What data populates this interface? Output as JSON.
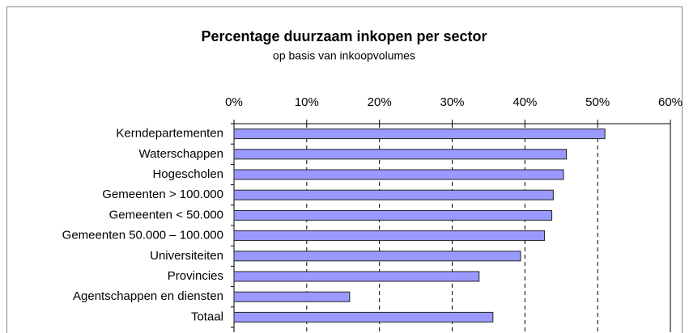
{
  "chart_data": {
    "type": "bar",
    "orientation": "horizontal",
    "title": "Percentage duurzaam inkopen per sector",
    "subtitle": "op basis van inkoopvolumes",
    "categories": [
      "Kerndepartementen",
      "Waterschappen",
      "Hogescholen",
      "Gemeenten > 100.000",
      "Gemeenten < 50.000",
      "Gemeenten 50.000 – 100.000",
      "Universiteiten",
      "Provincies",
      "Agentschappen en diensten",
      "Totaal"
    ],
    "values": [
      51,
      45.7,
      45.3,
      43.9,
      43.7,
      42.7,
      39.4,
      33.7,
      15.9,
      35.6
    ],
    "color": "#9999ff",
    "xlim": [
      0,
      60
    ],
    "xticks": [
      {
        "value": 0,
        "label": "0%"
      },
      {
        "value": 10,
        "label": "10%"
      },
      {
        "value": 20,
        "label": "20%"
      },
      {
        "value": 30,
        "label": "30%"
      },
      {
        "value": 40,
        "label": "40%"
      },
      {
        "value": 50,
        "label": "50%"
      },
      {
        "value": 60,
        "label": "60%"
      }
    ],
    "grid": true
  }
}
